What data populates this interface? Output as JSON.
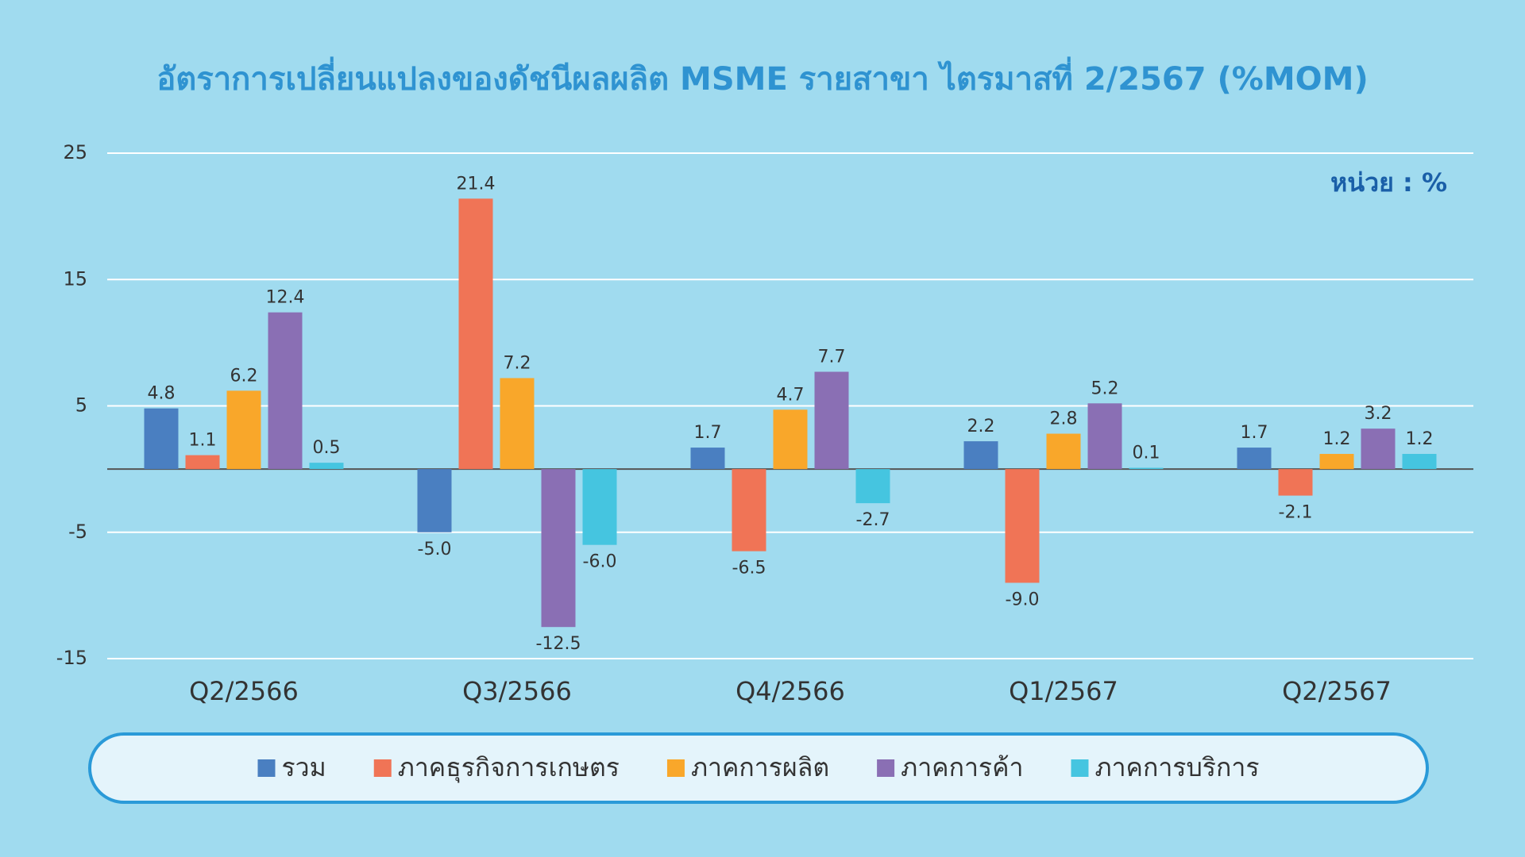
{
  "chart_data": {
    "type": "bar",
    "title": "อัตราการเปลี่ยนแปลงของดัชนีผลผลิต MSME รายสาขา ไตรมาสที่ 2/2567 (%MOM)",
    "unit_note": "หน่วย : %",
    "categories": [
      "Q2/2566",
      "Q3/2566",
      "Q4/2566",
      "Q1/2567",
      "Q2/2567"
    ],
    "series": [
      {
        "name": "รวม",
        "color": "#4a7fc1",
        "values": [
          4.8,
          -5.0,
          1.7,
          2.2,
          1.7
        ],
        "value_labels": [
          "4.8",
          "-5.0",
          "1.7",
          "2.2",
          "1.7"
        ]
      },
      {
        "name": "ภาคธุรกิจการเกษตร",
        "color": "#f07456",
        "values": [
          1.1,
          21.4,
          -6.5,
          -9.0,
          -2.1
        ],
        "value_labels": [
          "1.1",
          "21.4",
          "-6.5",
          "-9.0",
          "-2.1"
        ]
      },
      {
        "name": "ภาคการผลิต",
        "color": "#f9a72a",
        "values": [
          6.2,
          7.2,
          4.7,
          2.8,
          1.2
        ],
        "value_labels": [
          "6.2",
          "7.2",
          "4.7",
          "2.8",
          "1.2"
        ]
      },
      {
        "name": "ภาคการค้า",
        "color": "#8a6fb4",
        "values": [
          12.4,
          -12.5,
          7.7,
          5.2,
          3.2
        ],
        "value_labels": [
          "12.4",
          "-12.5",
          "7.7",
          "5.2",
          "3.2"
        ]
      },
      {
        "name": "ภาคการบริการ",
        "color": "#45c5e0",
        "values": [
          0.5,
          -6.0,
          -2.7,
          0.1,
          1.2
        ],
        "value_labels": [
          "0.5",
          "-6.0",
          "-2.7",
          "0.1",
          "1.2"
        ]
      }
    ],
    "ylim": [
      -15,
      25
    ],
    "yticks": [
      -15,
      -5,
      5,
      15,
      25
    ],
    "grid": true
  }
}
